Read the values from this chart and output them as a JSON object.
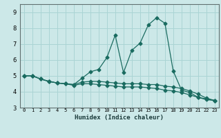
{
  "title": "",
  "xlabel": "Humidex (Indice chaleur)",
  "background_color": "#cce8e8",
  "line_color": "#1a6b60",
  "grid_color": "#aad4d4",
  "x_values": [
    0,
    1,
    2,
    3,
    4,
    5,
    6,
    7,
    8,
    9,
    10,
    11,
    12,
    13,
    14,
    15,
    16,
    17,
    18,
    19,
    20,
    21,
    22,
    23
  ],
  "y_main": [
    5.0,
    5.0,
    4.8,
    4.65,
    4.55,
    4.5,
    4.45,
    4.85,
    5.25,
    5.4,
    6.15,
    7.55,
    5.2,
    6.6,
    7.05,
    8.2,
    8.65,
    8.3,
    5.3,
    4.1,
    3.95,
    3.65,
    3.55,
    3.45
  ],
  "y_line2": [
    5.0,
    5.0,
    4.8,
    4.65,
    4.55,
    4.5,
    4.45,
    4.6,
    4.65,
    4.65,
    4.6,
    4.55,
    4.5,
    4.5,
    4.5,
    4.45,
    4.45,
    4.35,
    4.3,
    4.2,
    4.05,
    3.85,
    3.6,
    3.45
  ],
  "y_line3": [
    5.0,
    5.0,
    4.8,
    4.65,
    4.55,
    4.5,
    4.4,
    4.5,
    4.5,
    4.45,
    4.4,
    4.35,
    4.3,
    4.3,
    4.3,
    4.25,
    4.2,
    4.1,
    4.05,
    3.95,
    3.8,
    3.65,
    3.5,
    3.45
  ],
  "ylim": [
    3.0,
    9.5
  ],
  "xlim": [
    -0.5,
    23.5
  ],
  "yticks": [
    3,
    4,
    5,
    6,
    7,
    8,
    9
  ],
  "xtick_labels": [
    "0",
    "1",
    "2",
    "3",
    "4",
    "5",
    "6",
    "7",
    "8",
    "9",
    "10",
    "11",
    "12",
    "13",
    "14",
    "15",
    "16",
    "17",
    "18",
    "19",
    "20",
    "21",
    "22",
    "23"
  ]
}
